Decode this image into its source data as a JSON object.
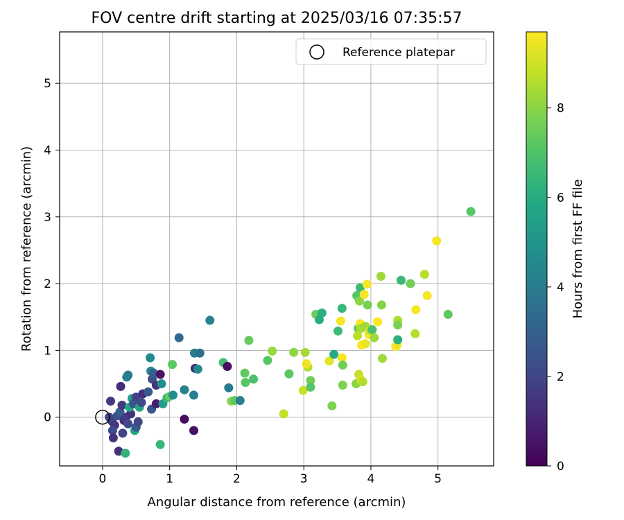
{
  "chart_data": {
    "type": "scatter",
    "title": "FOV centre drift starting at 2025/03/16 07:35:57",
    "xlabel": "Angular distance from reference (arcmin)",
    "ylabel": "Rotation from reference (arcmin)",
    "xlim": [
      -0.64,
      5.83
    ],
    "ylim": [
      -0.73,
      5.77
    ],
    "xticks": [
      0,
      1,
      2,
      3,
      4,
      5
    ],
    "yticks": [
      0,
      1,
      2,
      3,
      4,
      5
    ],
    "grid": true,
    "legend": {
      "placement": "top-right",
      "entries": [
        "Reference platepar"
      ]
    },
    "reference_point": {
      "x": 0,
      "y": 0
    },
    "colorbar": {
      "label": "Hours from first FF file",
      "range": [
        0,
        9.7
      ],
      "ticks": [
        0,
        2,
        4,
        6,
        8
      ],
      "colormap": "viridis"
    },
    "points": [
      {
        "x": 0.12,
        "y": 0.24,
        "h": 1.6
      },
      {
        "x": 0.1,
        "y": 0.0,
        "h": 2.0
      },
      {
        "x": 0.14,
        "y": -0.06,
        "h": 1.8
      },
      {
        "x": 0.18,
        "y": -0.12,
        "h": 1.5
      },
      {
        "x": 0.15,
        "y": -0.2,
        "h": 2.2
      },
      {
        "x": 0.16,
        "y": -0.31,
        "h": 1.4
      },
      {
        "x": 0.24,
        "y": -0.51,
        "h": 1.3
      },
      {
        "x": 0.27,
        "y": 0.46,
        "h": 1.2
      },
      {
        "x": 0.22,
        "y": 0.02,
        "h": 2.4
      },
      {
        "x": 0.26,
        "y": 0.08,
        "h": 2.9
      },
      {
        "x": 0.29,
        "y": 0.18,
        "h": 1.6
      },
      {
        "x": 0.3,
        "y": -0.24,
        "h": 1.9
      },
      {
        "x": 0.32,
        "y": -0.05,
        "h": 1.2
      },
      {
        "x": 0.36,
        "y": 0.6,
        "h": 4.2
      },
      {
        "x": 0.38,
        "y": 0.63,
        "h": 4.0
      },
      {
        "x": 0.35,
        "y": 0.0,
        "h": 1.7
      },
      {
        "x": 0.38,
        "y": -0.1,
        "h": 2.1
      },
      {
        "x": 0.42,
        "y": 0.05,
        "h": 1.4
      },
      {
        "x": 0.4,
        "y": 0.15,
        "h": 5.8
      },
      {
        "x": 0.44,
        "y": 0.28,
        "h": 5.4
      },
      {
        "x": 0.46,
        "y": 0.2,
        "h": 2.6
      },
      {
        "x": 0.5,
        "y": 0.3,
        "h": 1.9
      },
      {
        "x": 0.48,
        "y": -0.2,
        "h": 5.9
      },
      {
        "x": 0.5,
        "y": -0.15,
        "h": 2.7
      },
      {
        "x": 0.53,
        "y": -0.07,
        "h": 2.0
      },
      {
        "x": 0.55,
        "y": 0.15,
        "h": 5.6
      },
      {
        "x": 0.58,
        "y": 0.22,
        "h": 2.2
      },
      {
        "x": 0.6,
        "y": 0.35,
        "h": 1.2
      },
      {
        "x": 0.34,
        "y": -0.54,
        "h": 6.3
      },
      {
        "x": 0.68,
        "y": 0.38,
        "h": 2.7
      },
      {
        "x": 0.71,
        "y": 0.89,
        "h": 4.6
      },
      {
        "x": 0.72,
        "y": 0.69,
        "h": 4.5
      },
      {
        "x": 0.74,
        "y": 0.57,
        "h": 2.3
      },
      {
        "x": 0.76,
        "y": 0.66,
        "h": 2.9
      },
      {
        "x": 0.73,
        "y": 0.12,
        "h": 2.6
      },
      {
        "x": 0.8,
        "y": 0.48,
        "h": 1.5
      },
      {
        "x": 0.8,
        "y": 0.2,
        "h": 0.8
      },
      {
        "x": 0.86,
        "y": 0.64,
        "h": 0.5
      },
      {
        "x": 0.88,
        "y": 0.5,
        "h": 4.8
      },
      {
        "x": 0.9,
        "y": 0.2,
        "h": 5.5
      },
      {
        "x": 0.96,
        "y": 0.29,
        "h": 6.5
      },
      {
        "x": 1.0,
        "y": 0.31,
        "h": 7.4
      },
      {
        "x": 0.86,
        "y": -0.41,
        "h": 6.4
      },
      {
        "x": 1.04,
        "y": 0.79,
        "h": 7.2
      },
      {
        "x": 1.05,
        "y": 0.33,
        "h": 4.8
      },
      {
        "x": 1.14,
        "y": 1.19,
        "h": 3.3
      },
      {
        "x": 1.22,
        "y": 0.41,
        "h": 4.3
      },
      {
        "x": 1.22,
        "y": -0.03,
        "h": 0.3
      },
      {
        "x": 1.36,
        "y": 0.33,
        "h": 4.1
      },
      {
        "x": 1.36,
        "y": -0.2,
        "h": 0.4
      },
      {
        "x": 1.37,
        "y": 0.96,
        "h": 4.1
      },
      {
        "x": 1.38,
        "y": 0.73,
        "h": 1.1
      },
      {
        "x": 1.42,
        "y": 0.72,
        "h": 4.5
      },
      {
        "x": 1.45,
        "y": 0.96,
        "h": 3.5
      },
      {
        "x": 1.6,
        "y": 1.45,
        "h": 4.3
      },
      {
        "x": 1.8,
        "y": 0.82,
        "h": 6.8
      },
      {
        "x": 1.86,
        "y": 0.76,
        "h": 0.4
      },
      {
        "x": 1.88,
        "y": 0.44,
        "h": 4.0
      },
      {
        "x": 1.92,
        "y": 0.24,
        "h": 8.0
      },
      {
        "x": 1.97,
        "y": 0.25,
        "h": 7.3
      },
      {
        "x": 2.05,
        "y": 0.25,
        "h": 4.2
      },
      {
        "x": 2.12,
        "y": 0.66,
        "h": 7.3
      },
      {
        "x": 2.13,
        "y": 0.52,
        "h": 7.1
      },
      {
        "x": 2.18,
        "y": 1.15,
        "h": 7.4
      },
      {
        "x": 2.25,
        "y": 0.57,
        "h": 6.9
      },
      {
        "x": 2.46,
        "y": 0.85,
        "h": 7.1
      },
      {
        "x": 2.53,
        "y": 0.99,
        "h": 8.2
      },
      {
        "x": 2.7,
        "y": 0.05,
        "h": 8.8
      },
      {
        "x": 2.78,
        "y": 0.65,
        "h": 7.2
      },
      {
        "x": 2.85,
        "y": 0.97,
        "h": 8.1
      },
      {
        "x": 2.99,
        "y": 0.4,
        "h": 8.9
      },
      {
        "x": 3.02,
        "y": 0.97,
        "h": 8.4
      },
      {
        "x": 3.06,
        "y": 0.75,
        "h": 8.6
      },
      {
        "x": 3.04,
        "y": 0.8,
        "h": 9.5
      },
      {
        "x": 3.1,
        "y": 0.55,
        "h": 7.6
      },
      {
        "x": 3.1,
        "y": 0.45,
        "h": 7.1
      },
      {
        "x": 3.18,
        "y": 1.54,
        "h": 7.5
      },
      {
        "x": 3.23,
        "y": 1.46,
        "h": 6.0
      },
      {
        "x": 3.27,
        "y": 1.56,
        "h": 6.1
      },
      {
        "x": 3.38,
        "y": 0.84,
        "h": 9.3
      },
      {
        "x": 3.42,
        "y": 0.17,
        "h": 7.8
      },
      {
        "x": 3.45,
        "y": 0.94,
        "h": 5.9
      },
      {
        "x": 3.51,
        "y": 1.29,
        "h": 6.6
      },
      {
        "x": 3.55,
        "y": 1.44,
        "h": 9.6
      },
      {
        "x": 3.57,
        "y": 1.63,
        "h": 6.4
      },
      {
        "x": 3.57,
        "y": 0.89,
        "h": 9.6
      },
      {
        "x": 3.58,
        "y": 0.78,
        "h": 7.6
      },
      {
        "x": 3.58,
        "y": 0.48,
        "h": 7.8
      },
      {
        "x": 3.78,
        "y": 0.5,
        "h": 8.0
      },
      {
        "x": 3.79,
        "y": 1.82,
        "h": 7.1
      },
      {
        "x": 3.81,
        "y": 1.33,
        "h": 7.3
      },
      {
        "x": 3.8,
        "y": 1.22,
        "h": 8.7
      },
      {
        "x": 3.82,
        "y": 0.64,
        "h": 8.9
      },
      {
        "x": 3.83,
        "y": 1.74,
        "h": 8.0
      },
      {
        "x": 3.84,
        "y": 1.94,
        "h": 6.6
      },
      {
        "x": 3.84,
        "y": 1.4,
        "h": 9.6
      },
      {
        "x": 3.85,
        "y": 0.56,
        "h": 9.1
      },
      {
        "x": 3.85,
        "y": 1.33,
        "h": 8.4
      },
      {
        "x": 3.86,
        "y": 1.08,
        "h": 9.7
      },
      {
        "x": 3.88,
        "y": 0.53,
        "h": 8.6
      },
      {
        "x": 3.9,
        "y": 1.84,
        "h": 9.6
      },
      {
        "x": 3.92,
        "y": 1.1,
        "h": 9.4
      },
      {
        "x": 3.92,
        "y": 1.36,
        "h": 8.3
      },
      {
        "x": 3.94,
        "y": 1.99,
        "h": 9.6
      },
      {
        "x": 3.95,
        "y": 1.68,
        "h": 7.7
      },
      {
        "x": 3.97,
        "y": 1.24,
        "h": 9.6
      },
      {
        "x": 3.98,
        "y": 1.3,
        "h": 8.9
      },
      {
        "x": 4.02,
        "y": 1.31,
        "h": 6.9
      },
      {
        "x": 4.05,
        "y": 1.19,
        "h": 8.3
      },
      {
        "x": 4.1,
        "y": 1.43,
        "h": 9.7
      },
      {
        "x": 4.15,
        "y": 2.11,
        "h": 8.3
      },
      {
        "x": 4.16,
        "y": 1.68,
        "h": 7.9
      },
      {
        "x": 4.17,
        "y": 0.88,
        "h": 8.3
      },
      {
        "x": 4.37,
        "y": 1.06,
        "h": 9.7
      },
      {
        "x": 4.39,
        "y": 1.08,
        "h": 9.5
      },
      {
        "x": 4.4,
        "y": 1.45,
        "h": 8.5
      },
      {
        "x": 4.4,
        "y": 1.16,
        "h": 6.1
      },
      {
        "x": 4.4,
        "y": 1.38,
        "h": 7.7
      },
      {
        "x": 4.45,
        "y": 2.05,
        "h": 6.5
      },
      {
        "x": 4.59,
        "y": 2.0,
        "h": 7.6
      },
      {
        "x": 4.66,
        "y": 1.25,
        "h": 8.6
      },
      {
        "x": 4.67,
        "y": 1.61,
        "h": 9.6
      },
      {
        "x": 4.8,
        "y": 2.14,
        "h": 8.6
      },
      {
        "x": 4.84,
        "y": 1.82,
        "h": 9.6
      },
      {
        "x": 4.98,
        "y": 2.64,
        "h": 9.6
      },
      {
        "x": 5.15,
        "y": 1.54,
        "h": 7.3
      },
      {
        "x": 5.49,
        "y": 3.08,
        "h": 7.1
      }
    ]
  }
}
